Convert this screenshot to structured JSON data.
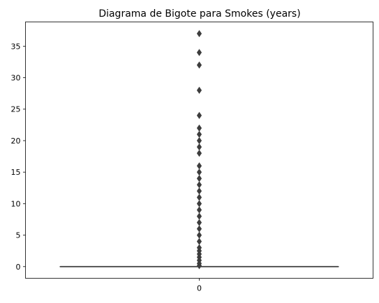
{
  "chart_data": {
    "type": "box",
    "title": "Diagrama de Bigote para Smokes (years)",
    "xlabel": "",
    "ylabel": "",
    "categories": [
      "0"
    ],
    "ylim": [
      -1.85,
      38.85
    ],
    "yticks": [
      0,
      5,
      10,
      15,
      20,
      25,
      30,
      35
    ],
    "box": {
      "min": 0,
      "q1": 0,
      "median": 0,
      "q3": 0,
      "max": 0
    },
    "outliers": [
      0.16,
      0.5,
      1,
      1.5,
      2,
      2.5,
      3,
      4,
      5,
      6,
      7,
      8,
      9,
      10,
      11,
      12,
      13,
      14,
      15,
      16,
      18,
      19,
      20,
      21,
      22,
      24,
      28,
      32,
      34,
      37
    ],
    "grid": false,
    "colors": {
      "box": "#3d3d3d",
      "outlier": "#3d3d3d",
      "axis": "#000000"
    }
  }
}
